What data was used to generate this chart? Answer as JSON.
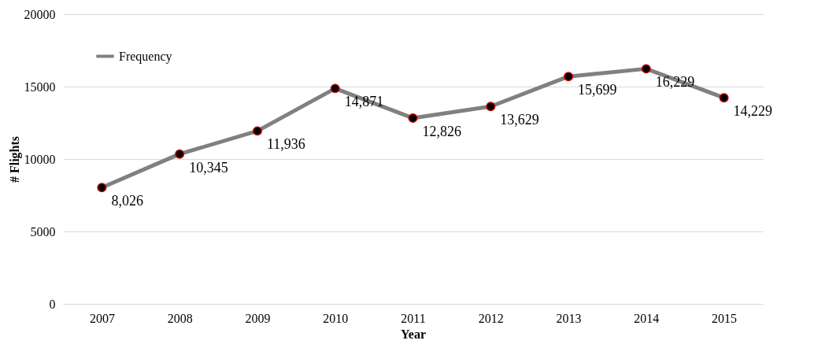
{
  "chart_data": {
    "type": "line",
    "xlabel": "Year",
    "ylabel": "# Flights",
    "categories": [
      "2007",
      "2008",
      "2009",
      "2010",
      "2011",
      "2012",
      "2013",
      "2014",
      "2015"
    ],
    "series": [
      {
        "name": "Frequency",
        "color": "#808080",
        "values": [
          8026,
          10345,
          11936,
          14871,
          12826,
          13629,
          15699,
          16229,
          14229
        ]
      }
    ],
    "value_labels": [
      "8,026",
      "10,345",
      "11,936",
      "14,871",
      "12,826",
      "13,629",
      "15,699",
      "16,229",
      "14,229"
    ],
    "ylim": [
      0,
      20000
    ],
    "yticks": [
      0,
      5000,
      10000,
      15000,
      20000
    ],
    "grid": "y",
    "legend": "top left",
    "marker": "circle",
    "line_style": "solid"
  }
}
